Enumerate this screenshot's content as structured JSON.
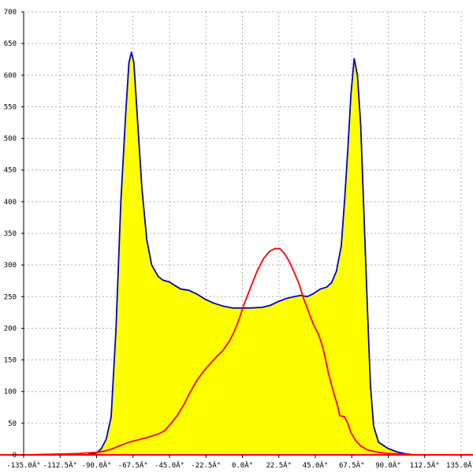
{
  "chart_data": {
    "type": "area",
    "title": "",
    "xlabel": "",
    "ylabel": "",
    "xlim": [
      -135,
      135
    ],
    "ylim": [
      0,
      700
    ],
    "grid": true,
    "x_tick_labels": [
      "-135.0Â°",
      "-112.5Â°",
      "-90.0Â°",
      "-67.5Â°",
      "-45.0Â°",
      "-22.5Â°",
      "0.0Â°",
      "22.5Â°",
      "45.0Â°",
      "67.5Â°",
      "90.0Â°",
      "112.5Â°",
      "135.0Â°"
    ],
    "x_tick_values": [
      -135,
      -112.5,
      -90,
      -67.5,
      -45,
      -22.5,
      0,
      22.5,
      45,
      67.5,
      90,
      112.5,
      135
    ],
    "y_tick_labels": [
      "0",
      "50",
      "100",
      "150",
      "200",
      "250",
      "300",
      "350",
      "400",
      "450",
      "500",
      "550",
      "600",
      "650",
      "700"
    ],
    "y_tick_values": [
      0,
      50,
      100,
      150,
      200,
      250,
      300,
      350,
      400,
      450,
      500,
      550,
      600,
      650,
      700
    ],
    "series": [
      {
        "color": "#0000cc",
        "fill": "#ffff00",
        "points": [
          [
            -96,
            0
          ],
          [
            -90,
            3
          ],
          [
            -87,
            10
          ],
          [
            -84,
            25
          ],
          [
            -81,
            60
          ],
          [
            -78,
            200
          ],
          [
            -75,
            400
          ],
          [
            -72,
            540
          ],
          [
            -70,
            620
          ],
          [
            -68.5,
            636
          ],
          [
            -67,
            620
          ],
          [
            -65,
            540
          ],
          [
            -62,
            420
          ],
          [
            -59,
            340
          ],
          [
            -56,
            300
          ],
          [
            -52,
            282
          ],
          [
            -49,
            276
          ],
          [
            -45,
            273
          ],
          [
            -42,
            268
          ],
          [
            -38,
            262
          ],
          [
            -33,
            260
          ],
          [
            -28,
            254
          ],
          [
            -23,
            246
          ],
          [
            -18,
            240
          ],
          [
            -12,
            235
          ],
          [
            -6,
            232
          ],
          [
            0,
            232
          ],
          [
            5,
            232
          ],
          [
            12,
            233
          ],
          [
            17,
            236
          ],
          [
            22,
            242
          ],
          [
            27,
            247
          ],
          [
            32,
            250
          ],
          [
            36,
            252
          ],
          [
            40,
            250
          ],
          [
            44,
            255
          ],
          [
            48,
            262
          ],
          [
            52,
            265
          ],
          [
            55,
            272
          ],
          [
            58,
            290
          ],
          [
            61,
            330
          ],
          [
            63,
            400
          ],
          [
            65,
            480
          ],
          [
            67,
            570
          ],
          [
            69,
            626
          ],
          [
            71,
            600
          ],
          [
            73,
            520
          ],
          [
            75,
            380
          ],
          [
            77,
            240
          ],
          [
            79,
            110
          ],
          [
            81,
            45
          ],
          [
            84,
            20
          ],
          [
            87,
            15
          ],
          [
            90,
            10
          ],
          [
            95,
            5
          ],
          [
            100,
            2
          ],
          [
            106,
            0
          ]
        ]
      },
      {
        "color": "#ff0000",
        "fill": "none",
        "points": [
          [
            -135,
            0
          ],
          [
            -102,
            2
          ],
          [
            -96,
            3
          ],
          [
            -90,
            4
          ],
          [
            -85,
            6
          ],
          [
            -80,
            10
          ],
          [
            -75,
            15
          ],
          [
            -70,
            20
          ],
          [
            -64,
            24
          ],
          [
            -58,
            28
          ],
          [
            -52,
            33
          ],
          [
            -48,
            38
          ],
          [
            -44,
            50
          ],
          [
            -40,
            63
          ],
          [
            -36,
            80
          ],
          [
            -32,
            100
          ],
          [
            -28,
            118
          ],
          [
            -24,
            132
          ],
          [
            -20,
            144
          ],
          [
            -16,
            155
          ],
          [
            -12,
            165
          ],
          [
            -8,
            180
          ],
          [
            -5,
            195
          ],
          [
            -2,
            215
          ],
          [
            1,
            238
          ],
          [
            5,
            264
          ],
          [
            9,
            290
          ],
          [
            13,
            310
          ],
          [
            17,
            322
          ],
          [
            20,
            326
          ],
          [
            23,
            326
          ],
          [
            26,
            318
          ],
          [
            29,
            305
          ],
          [
            32,
            288
          ],
          [
            35,
            270
          ],
          [
            38,
            245
          ],
          [
            41,
            225
          ],
          [
            44,
            205
          ],
          [
            47,
            190
          ],
          [
            49,
            175
          ],
          [
            51,
            155
          ],
          [
            53,
            130
          ],
          [
            55,
            110
          ],
          [
            57,
            92
          ],
          [
            59,
            75
          ],
          [
            60,
            62
          ],
          [
            63,
            60
          ],
          [
            65,
            50
          ],
          [
            67,
            35
          ],
          [
            70,
            22
          ],
          [
            73,
            14
          ],
          [
            77,
            8
          ],
          [
            82,
            5
          ],
          [
            87,
            3
          ],
          [
            92,
            2
          ],
          [
            100,
            1
          ],
          [
            107,
            0
          ],
          [
            135,
            0
          ]
        ]
      }
    ]
  }
}
